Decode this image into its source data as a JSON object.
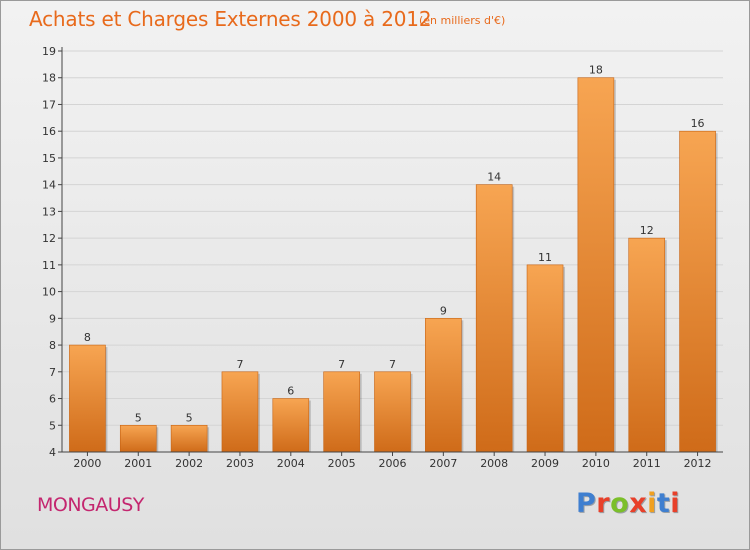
{
  "header": {
    "title": "Achats et Charges Externes 2000 à 2012",
    "subtitle": "(en milliers d'€)"
  },
  "footer": {
    "commune": "MONGAUSY",
    "logo_text": "Proxiti",
    "logo_colors": [
      "#3f7fd0",
      "#e8402a",
      "#7bbf2a",
      "#e8402a",
      "#f0a020",
      "#3f7fd0",
      "#e8402a"
    ]
  },
  "colors": {
    "bar_light": "#f7a552",
    "bar_dark": "#cf6b19",
    "axis": "#444444",
    "grid": "#d4d4d4",
    "title": "#e86a1c",
    "commune": "#c4266f"
  },
  "chart_data": {
    "type": "bar",
    "title": "Achats et Charges Externes 2000 à 2012",
    "xlabel": "",
    "ylabel": "(en milliers d'€)",
    "categories": [
      "2000",
      "2001",
      "2002",
      "2003",
      "2004",
      "2005",
      "2006",
      "2007",
      "2008",
      "2009",
      "2010",
      "2011",
      "2012"
    ],
    "values": [
      8,
      5,
      5,
      7,
      6,
      7,
      7,
      9,
      14,
      11,
      18,
      12,
      16
    ],
    "data_labels": [
      "8",
      "5",
      "5",
      "7",
      "6",
      "7",
      "7",
      "9",
      "14",
      "11",
      "18",
      "12",
      "16"
    ],
    "ylim": [
      4,
      19
    ],
    "yticks": [
      "4",
      "5",
      "6",
      "7",
      "8",
      "9",
      "10",
      "11",
      "12",
      "13",
      "14",
      "15",
      "16",
      "17",
      "18",
      "19"
    ],
    "grid": true,
    "legend": "none"
  }
}
